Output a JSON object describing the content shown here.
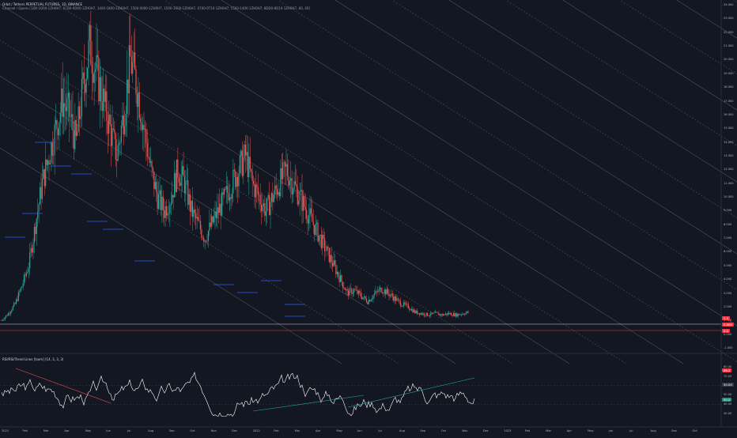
{
  "legend": {
    "title": "Orbit / Tethers PERPETUAL FUTURES, 1D, BINANCE",
    "subtitle": "Channel / Opens [1D0-1D00-1ZH0H7, 07D0-0D00-1ZH0H7, 1400-1800-1ZH0H7, 1500-0000-1ZH0H7, 1500-1X00-1ZH0H7, 0700-0T10-1ZH0H7, 1500-1400-1ZH0H7, 8DD0-8D10-1ZH0H7, 60, 40]"
  },
  "oscillator_legend": "RSI/RSI/Trend Lines [tsom] (14, 3, 3, 3)",
  "price_axis": {
    "labels": [
      "24.000",
      "23.000",
      "22.000",
      "21.000",
      "20.000",
      "19.000",
      "18.000",
      "17.000",
      "16.000",
      "15.000",
      "14.000",
      "13.000",
      "12.000",
      "11.000",
      "10.000",
      "9.000",
      "8.000",
      "7.000",
      "6.000",
      "5.000",
      "4.000",
      "3.000",
      "2.000",
      "1.000",
      "0.000",
      "-1.000"
    ],
    "tags": [
      {
        "text": "2.5",
        "color": "#f23645"
      },
      {
        "text": "0.000",
        "color": "#f23645"
      },
      {
        "text": "0.0",
        "color": "#f23645"
      }
    ]
  },
  "osc_axis": {
    "labels": [
      "80.00",
      "70.00",
      "60.00",
      "50.00",
      "40.00",
      "30.00"
    ],
    "tags": [
      {
        "text": "86.2",
        "color": "#f23645"
      },
      {
        "text": "50.00",
        "color": "#363a45"
      },
      {
        "text": "50.0",
        "color": "#089981"
      }
    ]
  },
  "time_axis": {
    "labels": [
      "2021",
      "Feb",
      "Mar",
      "Apr",
      "May",
      "Jun",
      "Jul",
      "Aug",
      "Sep",
      "Oct",
      "Nov",
      "Dec",
      "2022",
      "Feb",
      "Mar",
      "Apr",
      "May",
      "Jun",
      "Jul",
      "Aug",
      "Sep",
      "Oct",
      "Nov",
      "Dec",
      "2023",
      "Feb",
      "Mar",
      "Apr",
      "May",
      "Jun",
      "Jul",
      "Aug",
      "Sep",
      "Oct"
    ]
  },
  "colors": {
    "background": "#131722",
    "up": "#26a69a",
    "down": "#ef5350",
    "channel": "#5d606b",
    "level": "#2962ff",
    "rsi": "#ffffff",
    "accent": "#f23645"
  },
  "chart_data": {
    "type": "candlestick",
    "x_range": [
      "2021-01",
      "2023-10"
    ],
    "y_range": [
      -1,
      24
    ],
    "close_series_approx": [
      1.0,
      1.5,
      2.2,
      3.5,
      5,
      8,
      11,
      13,
      15,
      17,
      16,
      14,
      18,
      21,
      19,
      17,
      15,
      13,
      16,
      20,
      18,
      15,
      12,
      10,
      9,
      10,
      12,
      11,
      9,
      8,
      7,
      8,
      9,
      10,
      11,
      12,
      13,
      11,
      10,
      9,
      10,
      11,
      12,
      11,
      10,
      9,
      8,
      7,
      6,
      5,
      4,
      3,
      3.2,
      2.8,
      2.4,
      2.9,
      3.3,
      3.0,
      2.6,
      2.2,
      2.0,
      1.6,
      1.5,
      1.4,
      1.5,
      1.4,
      1.5,
      1.4,
      1.5,
      1.6
    ]
  }
}
